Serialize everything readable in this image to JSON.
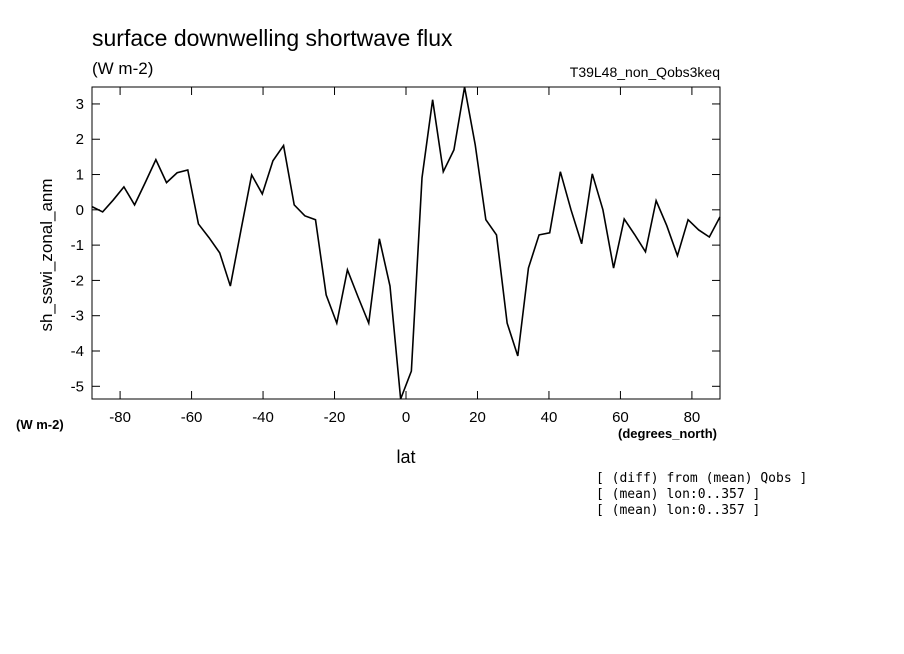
{
  "chart_data": {
    "type": "line",
    "title": "surface downwelling shortwave flux",
    "subtitle": "(W m-2)",
    "dataset_label": "T39L48_non_Qobs3keq",
    "y_label": "sh_sswi_zonal_anm",
    "y_units": "(W m-2)",
    "x_units": "(degrees_north)",
    "x_label": "lat",
    "notes": [
      "[ (diff) from (mean) Qobs ]",
      "[ (mean) lon:0..357 ]",
      "[ (mean) lon:0..357 ]"
    ],
    "x": [
      -87.86,
      -84.88,
      -81.9,
      -78.93,
      -75.95,
      -72.97,
      -69.99,
      -67.01,
      -64.04,
      -61.06,
      -58.08,
      -55.1,
      -52.12,
      -49.15,
      -46.17,
      -43.19,
      -40.21,
      -37.23,
      -34.26,
      -31.28,
      -28.3,
      -25.32,
      -22.34,
      -19.37,
      -16.39,
      -13.41,
      -10.43,
      -7.45,
      -4.48,
      -1.5,
      1.5,
      4.48,
      7.45,
      10.43,
      13.41,
      16.39,
      19.37,
      22.34,
      25.32,
      28.3,
      31.28,
      34.26,
      37.23,
      40.21,
      43.19,
      46.17,
      49.15,
      52.12,
      55.1,
      58.08,
      61.06,
      64.04,
      67.01,
      69.99,
      72.97,
      75.95,
      78.93,
      81.9,
      84.88,
      87.86
    ],
    "series": [
      {
        "color": "#000000",
        "values": [
          0.09,
          -0.06,
          0.28,
          0.65,
          0.14,
          0.77,
          1.42,
          0.77,
          1.05,
          1.13,
          -0.4,
          -0.79,
          -1.22,
          -2.16,
          -0.57,
          0.99,
          0.45,
          1.39,
          1.82,
          0.14,
          -0.17,
          -0.28,
          -2.41,
          -3.21,
          -1.7,
          -2.47,
          -3.21,
          -0.82,
          -2.16,
          -5.36,
          -4.57,
          0.91,
          3.12,
          1.08,
          1.7,
          3.48,
          1.84,
          -0.28,
          -0.71,
          -3.21,
          -4.14,
          -1.65,
          -0.71,
          -0.65,
          1.08,
          0.0,
          -0.96,
          1.02,
          0.0,
          -1.65,
          -0.26,
          -0.71,
          -1.19,
          0.26,
          -0.45,
          -1.3,
          -0.28,
          -0.57,
          -0.77,
          -0.2
        ]
      }
    ],
    "xlim": [
      -87.86,
      87.86
    ],
    "xticks": [
      -80,
      -60,
      -40,
      -20,
      0,
      20,
      40,
      60,
      80
    ],
    "ylim": [
      -5.36,
      3.48
    ],
    "yticks": [
      -5,
      -4,
      -3,
      -2,
      -1,
      0,
      1,
      2,
      3
    ]
  }
}
